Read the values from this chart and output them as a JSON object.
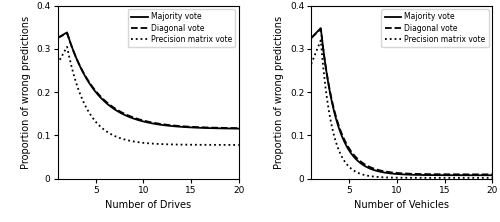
{
  "left": {
    "xlabel": "Number of Drives",
    "ylabel": "Proportion of wrong predictions",
    "xlim": [
      1,
      20
    ],
    "ylim": [
      0,
      0.4
    ],
    "xticks": [
      5,
      10,
      15,
      20
    ],
    "yticks": [
      0,
      0.1,
      0.2,
      0.3,
      0.4
    ],
    "yticklabels": [
      "0",
      "0.1",
      "0.2",
      "0.3",
      "0.4"
    ]
  },
  "right": {
    "xlabel": "Number of Vehicles",
    "ylabel": "Proportion of wrong predictions",
    "xlim": [
      1,
      20
    ],
    "ylim": [
      0,
      0.4
    ],
    "xticks": [
      5,
      10,
      15,
      20
    ],
    "yticks": [
      0,
      0.1,
      0.2,
      0.3,
      0.4
    ],
    "yticklabels": [
      "0",
      "0.1",
      "0.2",
      "0.3",
      "0.4"
    ]
  },
  "legend_labels": [
    "Majority vote",
    "Diagonal vote",
    "Precision matrix vote"
  ],
  "line_color": "#000000",
  "background_color": "#ffffff",
  "legend_fontsize": 5.5,
  "axis_label_fontsize": 7.0,
  "tick_fontsize": 6.5,
  "linewidth_solid": 1.3,
  "linewidth_dashed": 1.3,
  "linewidth_dotted": 1.3
}
